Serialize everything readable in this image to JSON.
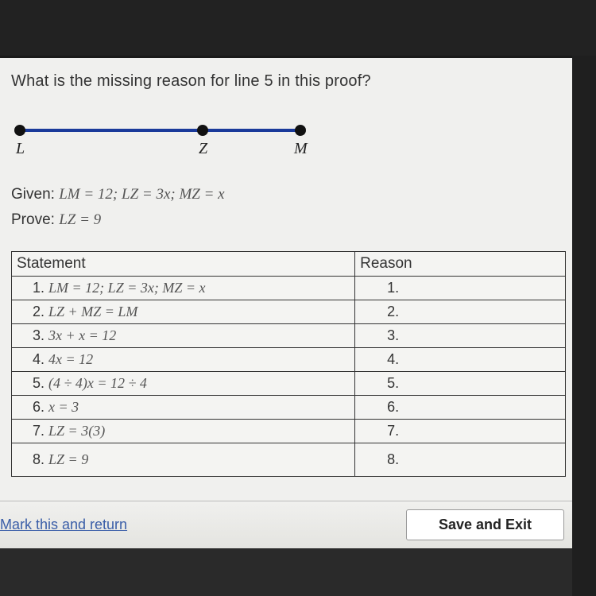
{
  "question": "What is the missing reason for line 5 in this proof?",
  "diagram": {
    "points": {
      "L": "L",
      "Z": "Z",
      "M": "M"
    },
    "line_color": "#1a3a9a",
    "dot_color": "#111111"
  },
  "given_label": "Given:",
  "given_text": "LM = 12; LZ = 3x; MZ = x",
  "prove_label": "Prove:",
  "prove_text": "LZ = 9",
  "table": {
    "headers": {
      "statement": "Statement",
      "reason": "Reason"
    },
    "rows": [
      {
        "n": "1.",
        "stmt": "LM = 12; LZ = 3x; MZ = x",
        "reas": "1."
      },
      {
        "n": "2.",
        "stmt": "LZ + MZ = LM",
        "reas": "2."
      },
      {
        "n": "3.",
        "stmt": "3x + x = 12",
        "reas": "3."
      },
      {
        "n": "4.",
        "stmt": "4x = 12",
        "reas": "4."
      },
      {
        "n": "5.",
        "stmt": "(4 ÷ 4)x = 12 ÷ 4",
        "reas": "5."
      },
      {
        "n": "6.",
        "stmt": "x = 3",
        "reas": "6."
      },
      {
        "n": "7.",
        "stmt": "LZ = 3(3)",
        "reas": "7."
      },
      {
        "n": "8.",
        "stmt": "LZ = 9",
        "reas": "8."
      }
    ]
  },
  "bottom": {
    "mark": "Mark this and return",
    "save": "Save and Exit"
  },
  "colors": {
    "page_bg": "#f0f0ee",
    "border": "#333333",
    "text": "#333333"
  }
}
